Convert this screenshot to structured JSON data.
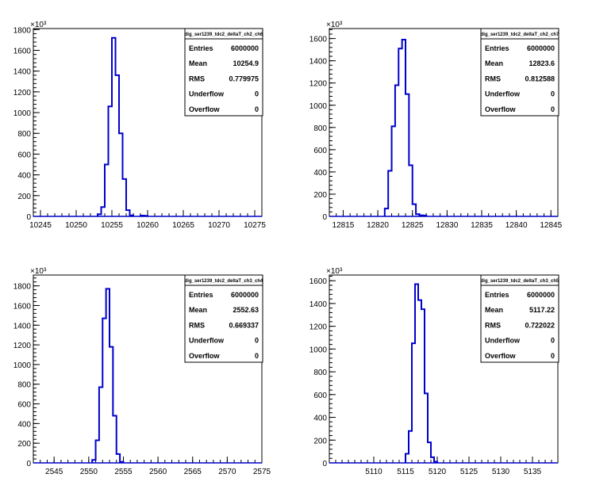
{
  "chart_data": [
    {
      "type": "histogram",
      "stats_title": "dig_ser1239_tdc2_deltaT_ch2_ch6",
      "stats": [
        {
          "label": "Entries",
          "value": "6000000"
        },
        {
          "label": "Mean",
          "value": "10254.9"
        },
        {
          "label": "RMS",
          "value": "0.779975"
        },
        {
          "label": "Underflow",
          "value": "0"
        },
        {
          "label": "Overflow",
          "value": "0"
        }
      ],
      "multiplier": "×10³",
      "xlim": [
        10244,
        10276
      ],
      "ylim": [
        0,
        1810
      ],
      "xticks": [
        10245,
        10250,
        10255,
        10260,
        10265,
        10270,
        10275
      ],
      "yticks": [
        0,
        200,
        400,
        600,
        800,
        1000,
        1200,
        1400,
        1600,
        1800
      ],
      "bin_width": 0.5,
      "bins": [
        [
          10253,
          20
        ],
        [
          10253.5,
          90
        ],
        [
          10254,
          500
        ],
        [
          10254.5,
          1060
        ],
        [
          10255,
          1720
        ],
        [
          10255.5,
          1360
        ],
        [
          10256,
          800
        ],
        [
          10256.5,
          360
        ],
        [
          10257,
          60
        ],
        [
          10257.5,
          10
        ],
        [
          10259,
          8
        ],
        [
          10259.5,
          6
        ]
      ]
    },
    {
      "type": "histogram",
      "stats_title": "dig_ser1239_tdc2_deltaT_ch2_ch7",
      "stats": [
        {
          "label": "Entries",
          "value": "6000000"
        },
        {
          "label": "Mean",
          "value": "12823.6"
        },
        {
          "label": "RMS",
          "value": "0.812588"
        },
        {
          "label": "Underflow",
          "value": "0"
        },
        {
          "label": "Overflow",
          "value": "0"
        }
      ],
      "multiplier": "×10³",
      "xlim": [
        12813,
        12846
      ],
      "ylim": [
        0,
        1690
      ],
      "xticks": [
        12815,
        12820,
        12825,
        12830,
        12835,
        12840,
        12845
      ],
      "yticks": [
        0,
        200,
        400,
        600,
        800,
        1000,
        1200,
        1400,
        1600
      ],
      "bin_width": 0.5,
      "bins": [
        [
          12821,
          70
        ],
        [
          12821.5,
          410
        ],
        [
          12822,
          810
        ],
        [
          12822.5,
          1180
        ],
        [
          12823,
          1510
        ],
        [
          12823.5,
          1590
        ],
        [
          12824,
          1100
        ],
        [
          12824.5,
          460
        ],
        [
          12825,
          110
        ],
        [
          12825.5,
          20
        ],
        [
          12826,
          10
        ],
        [
          12826.5,
          8
        ]
      ]
    },
    {
      "type": "histogram",
      "stats_title": "dig_ser1239_tdc2_deltaT_ch3_ch4",
      "stats": [
        {
          "label": "Entries",
          "value": "6000000"
        },
        {
          "label": "Mean",
          "value": "2552.63"
        },
        {
          "label": "RMS",
          "value": "0.669337"
        },
        {
          "label": "Underflow",
          "value": "0"
        },
        {
          "label": "Overflow",
          "value": "0"
        }
      ],
      "multiplier": "×10³",
      "xlim": [
        2542,
        2575
      ],
      "ylim": [
        0,
        1910
      ],
      "xticks": [
        2545,
        2550,
        2555,
        2560,
        2565,
        2570,
        2575
      ],
      "yticks": [
        0,
        200,
        400,
        600,
        800,
        1000,
        1200,
        1400,
        1600,
        1800
      ],
      "bin_width": 0.5,
      "bins": [
        [
          2550.5,
          30
        ],
        [
          2551,
          230
        ],
        [
          2551.5,
          770
        ],
        [
          2552,
          1470
        ],
        [
          2552.5,
          1770
        ],
        [
          2553,
          1180
        ],
        [
          2553.5,
          480
        ],
        [
          2554,
          90
        ],
        [
          2554.5,
          10
        ]
      ]
    },
    {
      "type": "histogram",
      "stats_title": "dig_ser1239_tdc2_deltaT_ch3_ch5",
      "stats": [
        {
          "label": "Entries",
          "value": "6000000"
        },
        {
          "label": "Mean",
          "value": "5117.22"
        },
        {
          "label": "RMS",
          "value": "0.722022"
        },
        {
          "label": "Underflow",
          "value": "0"
        },
        {
          "label": "Overflow",
          "value": "0"
        }
      ],
      "multiplier": "×10³",
      "xlim": [
        5103,
        5139
      ],
      "ylim": [
        0,
        1650
      ],
      "xticks": [
        5110,
        5115,
        5120,
        5125,
        5130,
        5135
      ],
      "yticks": [
        0,
        200,
        400,
        600,
        800,
        1000,
        1200,
        1400,
        1600
      ],
      "bin_width": 0.5,
      "bins": [
        [
          5115,
          80
        ],
        [
          5115.5,
          280
        ],
        [
          5116,
          1050
        ],
        [
          5116.5,
          1570
        ],
        [
          5117,
          1430
        ],
        [
          5117.5,
          1350
        ],
        [
          5118,
          610
        ],
        [
          5118.5,
          180
        ],
        [
          5119,
          50
        ],
        [
          5119.5,
          10
        ]
      ]
    }
  ]
}
